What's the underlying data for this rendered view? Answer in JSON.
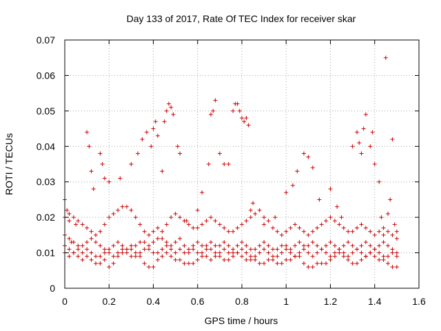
{
  "chart_data": {
    "type": "scatter",
    "title": "Day 133 of 2017, Rate Of TEC Index for receiver skar",
    "xlabel": "GPS time / hours",
    "ylabel": "ROTI / TECUs",
    "xlim": [
      0,
      1.6
    ],
    "ylim": [
      0,
      0.07
    ],
    "xticks": [
      "0",
      "0.2",
      "0.4",
      "0.6",
      "0.8",
      "1",
      "1.2",
      "1.4",
      "1.6"
    ],
    "yticks": [
      "0",
      "0.01",
      "0.02",
      "0.03",
      "0.04",
      "0.05",
      "0.06",
      "0.07"
    ],
    "grid": true,
    "marker": "plus",
    "color": "#cc0000",
    "series": [
      {
        "x": [
          0.0,
          0.01,
          0.02,
          0.03,
          0.05,
          0.1,
          0.11,
          0.12,
          0.13,
          0.16,
          0.17,
          0.18,
          0.2,
          0.25,
          0.3,
          0.33,
          0.35,
          0.37,
          0.39,
          0.4,
          0.41,
          0.42,
          0.44,
          0.45,
          0.46,
          0.47,
          0.48,
          0.49,
          0.51,
          0.52,
          0.55,
          0.6,
          0.62,
          0.65,
          0.66,
          0.67,
          0.68,
          0.7,
          0.72,
          0.74,
          0.76,
          0.77,
          0.78,
          0.79,
          0.8,
          0.81,
          0.82,
          0.83,
          0.84,
          0.85,
          0.9,
          0.95,
          1.0,
          1.03,
          1.05,
          1.08,
          1.1,
          1.12,
          1.15,
          1.2,
          1.23,
          1.25,
          1.3,
          1.32,
          1.33,
          1.34,
          1.35,
          1.36,
          1.38,
          1.39,
          1.4,
          1.42,
          1.43,
          1.44,
          1.45,
          1.46,
          1.47,
          1.48,
          1.49,
          1.5
        ],
        "y": [
          0.025,
          0.022,
          0.019,
          0.013,
          0.018,
          0.044,
          0.04,
          0.033,
          0.028,
          0.038,
          0.035,
          0.031,
          0.03,
          0.031,
          0.035,
          0.038,
          0.042,
          0.044,
          0.04,
          0.045,
          0.047,
          0.043,
          0.033,
          0.047,
          0.05,
          0.052,
          0.051,
          0.049,
          0.04,
          0.038,
          0.019,
          0.022,
          0.027,
          0.035,
          0.049,
          0.05,
          0.053,
          0.038,
          0.035,
          0.035,
          0.05,
          0.052,
          0.052,
          0.05,
          0.048,
          0.047,
          0.048,
          0.046,
          0.022,
          0.024,
          0.018,
          0.02,
          0.027,
          0.029,
          0.033,
          0.038,
          0.037,
          0.034,
          0.025,
          0.028,
          0.023,
          0.02,
          0.04,
          0.044,
          0.041,
          0.038,
          0.045,
          0.049,
          0.04,
          0.044,
          0.035,
          0.03,
          0.02,
          0.015,
          0.065,
          0.021,
          0.025,
          0.042,
          0.018,
          0.016
        ]
      },
      {
        "x": [
          0.0,
          0.02,
          0.04,
          0.06,
          0.08,
          0.1,
          0.12,
          0.14,
          0.16,
          0.18,
          0.2,
          0.22,
          0.24,
          0.26,
          0.28,
          0.3,
          0.32,
          0.34,
          0.36,
          0.38,
          0.4,
          0.42,
          0.44,
          0.46,
          0.48,
          0.5,
          0.52,
          0.54,
          0.56,
          0.58,
          0.6,
          0.62,
          0.64,
          0.66,
          0.68,
          0.7,
          0.72,
          0.74,
          0.76,
          0.78,
          0.8,
          0.82,
          0.84,
          0.86,
          0.88,
          0.9,
          0.92,
          0.94,
          0.96,
          0.98,
          1.0,
          1.02,
          1.04,
          1.06,
          1.08,
          1.1,
          1.12,
          1.14,
          1.16,
          1.18,
          1.2,
          1.22,
          1.24,
          1.26,
          1.28,
          1.3,
          1.32,
          1.34,
          1.36,
          1.38,
          1.4,
          1.42,
          1.44,
          1.46,
          1.48,
          1.5
        ],
        "y": [
          0.012,
          0.011,
          0.01,
          0.009,
          0.008,
          0.009,
          0.008,
          0.007,
          0.007,
          0.008,
          0.006,
          0.007,
          0.009,
          0.01,
          0.011,
          0.012,
          0.01,
          0.009,
          0.007,
          0.006,
          0.006,
          0.008,
          0.009,
          0.01,
          0.009,
          0.008,
          0.008,
          0.007,
          0.007,
          0.007,
          0.008,
          0.009,
          0.009,
          0.008,
          0.009,
          0.009,
          0.008,
          0.008,
          0.01,
          0.01,
          0.009,
          0.008,
          0.008,
          0.008,
          0.007,
          0.007,
          0.008,
          0.008,
          0.007,
          0.007,
          0.008,
          0.008,
          0.009,
          0.009,
          0.007,
          0.006,
          0.006,
          0.007,
          0.007,
          0.007,
          0.008,
          0.009,
          0.01,
          0.009,
          0.008,
          0.007,
          0.007,
          0.008,
          0.009,
          0.01,
          0.009,
          0.008,
          0.008,
          0.007,
          0.006,
          0.006
        ]
      },
      {
        "x": [
          0.0,
          0.02,
          0.04,
          0.06,
          0.08,
          0.1,
          0.12,
          0.14,
          0.16,
          0.18,
          0.2,
          0.22,
          0.24,
          0.26,
          0.28,
          0.3,
          0.32,
          0.34,
          0.36,
          0.38,
          0.4,
          0.42,
          0.44,
          0.46,
          0.48,
          0.5,
          0.52,
          0.54,
          0.56,
          0.58,
          0.6,
          0.62,
          0.64,
          0.66,
          0.68,
          0.7,
          0.72,
          0.74,
          0.76,
          0.78,
          0.8,
          0.82,
          0.84,
          0.86,
          0.88,
          0.9,
          0.92,
          0.94,
          0.96,
          0.98,
          1.0,
          1.02,
          1.04,
          1.06,
          1.08,
          1.1,
          1.12,
          1.14,
          1.16,
          1.18,
          1.2,
          1.22,
          1.24,
          1.26,
          1.28,
          1.3,
          1.32,
          1.34,
          1.36,
          1.38,
          1.4,
          1.42,
          1.44,
          1.46,
          1.48,
          1.5
        ],
        "y": [
          0.015,
          0.014,
          0.013,
          0.012,
          0.012,
          0.013,
          0.014,
          0.013,
          0.012,
          0.011,
          0.011,
          0.012,
          0.013,
          0.012,
          0.011,
          0.011,
          0.012,
          0.013,
          0.013,
          0.012,
          0.013,
          0.014,
          0.014,
          0.013,
          0.012,
          0.013,
          0.014,
          0.012,
          0.011,
          0.012,
          0.013,
          0.012,
          0.012,
          0.013,
          0.012,
          0.012,
          0.013,
          0.012,
          0.011,
          0.012,
          0.013,
          0.012,
          0.011,
          0.011,
          0.012,
          0.013,
          0.012,
          0.011,
          0.011,
          0.012,
          0.012,
          0.011,
          0.012,
          0.013,
          0.012,
          0.012,
          0.013,
          0.012,
          0.011,
          0.012,
          0.013,
          0.012,
          0.011,
          0.012,
          0.013,
          0.012,
          0.011,
          0.012,
          0.013,
          0.012,
          0.011,
          0.012,
          0.013,
          0.012,
          0.011,
          0.01
        ]
      },
      {
        "x": [
          0.0,
          0.02,
          0.04,
          0.06,
          0.08,
          0.1,
          0.12,
          0.14,
          0.16,
          0.18,
          0.2,
          0.22,
          0.24,
          0.26,
          0.28,
          0.3,
          0.32,
          0.34,
          0.36,
          0.38,
          0.4,
          0.42,
          0.44,
          0.46,
          0.48,
          0.5,
          0.52,
          0.54,
          0.56,
          0.58,
          0.6,
          0.62,
          0.64,
          0.66,
          0.68,
          0.7,
          0.72,
          0.74,
          0.76,
          0.78,
          0.8,
          0.82,
          0.84,
          0.86,
          0.88,
          0.9,
          0.92,
          0.94,
          0.96,
          0.98,
          1.0,
          1.02,
          1.04,
          1.06,
          1.08,
          1.1,
          1.12,
          1.14,
          1.16,
          1.18,
          1.2,
          1.22,
          1.24,
          1.26,
          1.28,
          1.3,
          1.32,
          1.34,
          1.36,
          1.38,
          1.4,
          1.42,
          1.44,
          1.46,
          1.48,
          1.5
        ],
        "y": [
          0.02,
          0.021,
          0.02,
          0.019,
          0.018,
          0.017,
          0.016,
          0.015,
          0.016,
          0.018,
          0.02,
          0.021,
          0.022,
          0.023,
          0.023,
          0.022,
          0.02,
          0.018,
          0.016,
          0.015,
          0.016,
          0.017,
          0.016,
          0.018,
          0.02,
          0.021,
          0.02,
          0.019,
          0.018,
          0.017,
          0.017,
          0.018,
          0.019,
          0.02,
          0.019,
          0.018,
          0.017,
          0.016,
          0.016,
          0.017,
          0.018,
          0.019,
          0.02,
          0.021,
          0.022,
          0.02,
          0.019,
          0.017,
          0.016,
          0.015,
          0.016,
          0.017,
          0.018,
          0.017,
          0.016,
          0.015,
          0.016,
          0.017,
          0.018,
          0.019,
          0.02,
          0.019,
          0.018,
          0.017,
          0.016,
          0.016,
          0.017,
          0.018,
          0.017,
          0.016,
          0.015,
          0.016,
          0.017,
          0.016,
          0.015,
          0.014
        ]
      },
      {
        "x": [
          0.0,
          0.02,
          0.04,
          0.06,
          0.08,
          0.1,
          0.12,
          0.14,
          0.16,
          0.18,
          0.2,
          0.22,
          0.24,
          0.26,
          0.28,
          0.3,
          0.32,
          0.34,
          0.36,
          0.38,
          0.4,
          0.42,
          0.44,
          0.46,
          0.48,
          0.5,
          0.52,
          0.54,
          0.56,
          0.58,
          0.6,
          0.62,
          0.64,
          0.66,
          0.68,
          0.7,
          0.72,
          0.74,
          0.76,
          0.78,
          0.8,
          0.82,
          0.84,
          0.86,
          0.88,
          0.9,
          0.92,
          0.94,
          0.96,
          0.98,
          1.0,
          1.02,
          1.04,
          1.06,
          1.08,
          1.1,
          1.12,
          1.14,
          1.16,
          1.18,
          1.2,
          1.22,
          1.24,
          1.26,
          1.28,
          1.3,
          1.32,
          1.34,
          1.36,
          1.38,
          1.4,
          1.42,
          1.44,
          1.46,
          1.48,
          1.5
        ],
        "y": [
          0.01,
          0.009,
          0.01,
          0.011,
          0.01,
          0.011,
          0.01,
          0.009,
          0.009,
          0.01,
          0.01,
          0.009,
          0.01,
          0.011,
          0.01,
          0.009,
          0.009,
          0.01,
          0.011,
          0.011,
          0.01,
          0.01,
          0.011,
          0.012,
          0.011,
          0.01,
          0.011,
          0.01,
          0.01,
          0.011,
          0.01,
          0.01,
          0.011,
          0.011,
          0.01,
          0.01,
          0.011,
          0.01,
          0.009,
          0.01,
          0.011,
          0.01,
          0.009,
          0.009,
          0.01,
          0.011,
          0.01,
          0.009,
          0.009,
          0.01,
          0.011,
          0.01,
          0.009,
          0.01,
          0.011,
          0.01,
          0.009,
          0.01,
          0.011,
          0.01,
          0.009,
          0.01,
          0.011,
          0.01,
          0.009,
          0.01,
          0.011,
          0.01,
          0.009,
          0.01,
          0.011,
          0.01,
          0.009,
          0.009,
          0.01,
          0.009
        ]
      }
    ]
  }
}
